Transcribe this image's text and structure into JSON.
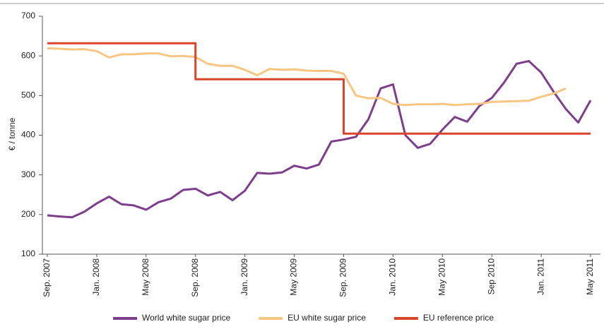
{
  "chart_data": {
    "type": "line",
    "y_label": "€ / tonne",
    "categories": [
      "Sep. 2007",
      null,
      null,
      null,
      "Jan. 2008",
      null,
      null,
      null,
      "May 2008",
      null,
      null,
      null,
      "Sep. 2008",
      null,
      null,
      null,
      "Jan. 2009",
      null,
      null,
      null,
      "May 2009",
      null,
      null,
      null,
      "Sep. 2009",
      null,
      null,
      null,
      "Jan. 2010",
      null,
      null,
      null,
      "May 2010",
      null,
      null,
      null,
      "Sep 2010",
      null,
      null,
      null,
      "Jan. 2011",
      null,
      null,
      null,
      "May 2011"
    ],
    "series": [
      {
        "name": "World white sugar price",
        "color": "#7d3e8c",
        "values": [
          198,
          195,
          193,
          207,
          228,
          245,
          226,
          223,
          212,
          231,
          240,
          262,
          265,
          248,
          257,
          236,
          260,
          305,
          303,
          306,
          323,
          316,
          326,
          384,
          389,
          396,
          440,
          518,
          528,
          400,
          368,
          378,
          414,
          446,
          434,
          474,
          494,
          533,
          580,
          587,
          558,
          510,
          466,
          432,
          488
        ]
      },
      {
        "name": "EU white sugar price",
        "color": "#f9c582",
        "values": [
          619,
          618,
          616,
          617,
          612,
          596,
          604,
          604,
          606,
          606,
          599,
          600,
          597,
          580,
          575,
          575,
          565,
          551,
          567,
          565,
          566,
          563,
          562,
          562,
          555,
          500,
          493,
          494,
          479,
          476,
          478,
          478,
          479,
          476,
          478,
          479,
          484,
          485,
          486,
          487,
          497,
          505,
          518,
          null,
          null
        ]
      },
      {
        "name": "EU reference price",
        "color": "#d9442b",
        "step": "before",
        "values": [
          632,
          632,
          632,
          632,
          632,
          632,
          632,
          632,
          632,
          632,
          632,
          632,
          632,
          541,
          541,
          541,
          541,
          541,
          541,
          541,
          541,
          541,
          541,
          541,
          541,
          404,
          404,
          404,
          404,
          404,
          404,
          404,
          404,
          404,
          404,
          404,
          404,
          404,
          404,
          404,
          404,
          404,
          404,
          404,
          404
        ]
      }
    ],
    "ylim": [
      100,
      700
    ],
    "yticks": [
      100,
      200,
      300,
      400,
      500,
      600,
      700
    ],
    "grid": false,
    "legend": "bottom"
  }
}
